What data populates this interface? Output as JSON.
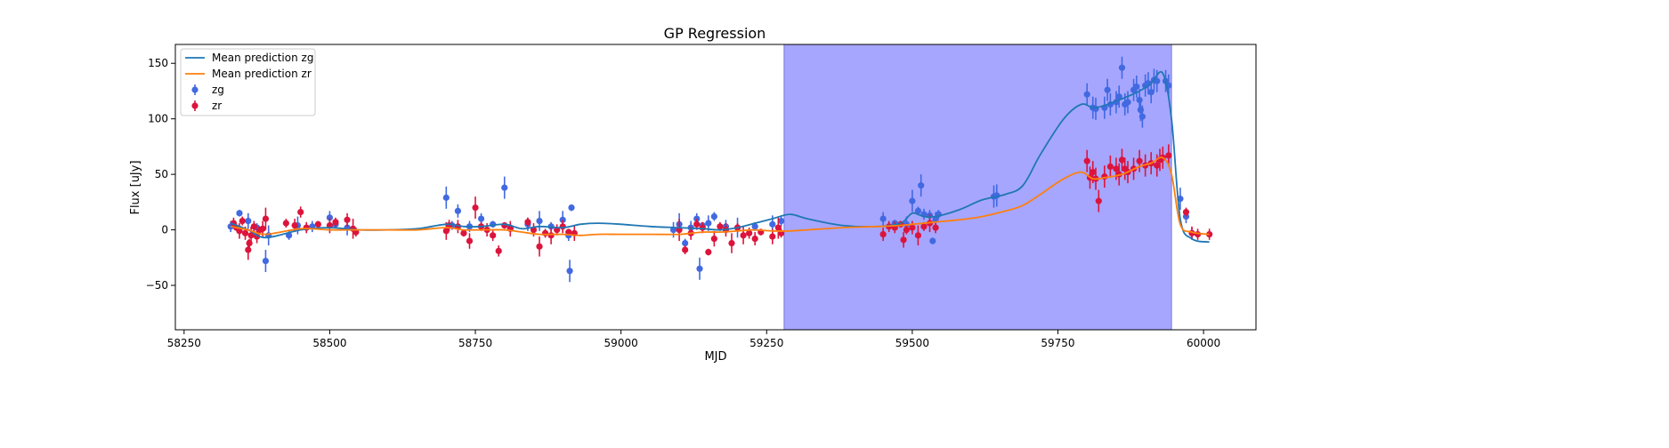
{
  "chart_data": {
    "type": "scatter",
    "title": "GP Regression",
    "xlabel": "MJD",
    "ylabel": "Flux [uJy]",
    "xlim": [
      58235,
      60090
    ],
    "ylim": [
      -90,
      167
    ],
    "x_ticks": [
      58250,
      58500,
      58750,
      59000,
      59250,
      59500,
      59750,
      60000
    ],
    "x_tick_labels": [
      "58250",
      "58500",
      "58750",
      "59000",
      "59250",
      "59500",
      "59750",
      "60000"
    ],
    "y_ticks": [
      -50,
      0,
      50,
      100,
      150
    ],
    "y_tick_labels": [
      "−50",
      "0",
      "50",
      "100",
      "150"
    ],
    "grid": false,
    "legend_position": "upper-left",
    "legend": [
      "Mean prediction zg",
      "Mean prediction zr",
      "zg",
      "zr"
    ],
    "colors": {
      "zg_line": "#1f77b4",
      "zr_line": "#ff7f0e",
      "zg_points": "#4169e1",
      "zr_points": "#dc143c",
      "shaded_region": "#a6a6ff"
    },
    "shaded_region": {
      "x_start": 59280,
      "x_end": 59945
    },
    "lines": [
      {
        "name": "Mean prediction zg",
        "color": "#1f77b4",
        "x": [
          58330,
          58360,
          58390,
          58450,
          58500,
          58550,
          58600,
          58650,
          58700,
          58730,
          58760,
          58800,
          58830,
          58860,
          58900,
          58930,
          58960,
          59000,
          59050,
          59100,
          59140,
          59170,
          59200,
          59230,
          59260,
          59290,
          59320,
          59380,
          59440,
          59480,
          59500,
          59520,
          59540,
          59580,
          59620,
          59660,
          59690,
          59720,
          59760,
          59790,
          59810,
          59830,
          59860,
          59890,
          59910,
          59930,
          59945,
          59960,
          59980,
          60010
        ],
        "y": [
          6,
          0,
          -7,
          0,
          2,
          0,
          0,
          1,
          5,
          3,
          3,
          5,
          1,
          3,
          2,
          5,
          6,
          5,
          3,
          2,
          1,
          0,
          2,
          6,
          10,
          14,
          10,
          4,
          3,
          6,
          15,
          12,
          12,
          18,
          27,
          32,
          40,
          68,
          100,
          113,
          110,
          112,
          118,
          125,
          132,
          141,
          100,
          10,
          -8,
          -11
        ]
      },
      {
        "name": "Mean prediction zr",
        "color": "#ff7f0e",
        "x": [
          58330,
          58360,
          58390,
          58450,
          58500,
          58550,
          58600,
          58650,
          58700,
          58730,
          58760,
          58800,
          58830,
          58860,
          58900,
          58930,
          58960,
          59000,
          59050,
          59100,
          59140,
          59170,
          59200,
          59230,
          59260,
          59290,
          59320,
          59380,
          59440,
          59480,
          59500,
          59520,
          59540,
          59580,
          59620,
          59660,
          59690,
          59720,
          59760,
          59790,
          59810,
          59830,
          59860,
          59890,
          59910,
          59930,
          59945,
          59960,
          59980,
          60010
        ],
        "y": [
          3,
          0,
          -4,
          1,
          0,
          0,
          0,
          0,
          2,
          0,
          0,
          0,
          -2,
          -4,
          -4,
          -5,
          -4,
          -4,
          -4,
          -4,
          -2,
          -2,
          -1,
          0,
          -1,
          -1,
          0,
          2,
          3,
          4,
          5,
          6,
          7,
          9,
          12,
          17,
          22,
          32,
          46,
          52,
          46,
          47,
          50,
          57,
          60,
          65,
          50,
          5,
          -2,
          -4
        ]
      },
      {
        "name": "",
        "color": "#1f77b4",
        "x": [],
        "y": []
      }
    ],
    "series": [
      {
        "name": "zg",
        "color": "#4169e1",
        "points": [
          [
            58330,
            3
          ],
          [
            58345,
            15
          ],
          [
            58360,
            8
          ],
          [
            58375,
            2
          ],
          [
            58390,
            -28
          ],
          [
            58395,
            -5
          ],
          [
            58430,
            -5
          ],
          [
            58445,
            4
          ],
          [
            58470,
            3
          ],
          [
            58500,
            11
          ],
          [
            58510,
            5
          ],
          [
            58530,
            2
          ],
          [
            58700,
            29
          ],
          [
            58710,
            4
          ],
          [
            58720,
            17
          ],
          [
            58740,
            3
          ],
          [
            58760,
            10
          ],
          [
            58780,
            5
          ],
          [
            58800,
            38
          ],
          [
            58810,
            2
          ],
          [
            58840,
            5
          ],
          [
            58860,
            8
          ],
          [
            58880,
            3
          ],
          [
            58900,
            9
          ],
          [
            58910,
            -5
          ],
          [
            58912,
            -37
          ],
          [
            58915,
            20
          ],
          [
            59090,
            0
          ],
          [
            59100,
            5
          ],
          [
            59110,
            -12
          ],
          [
            59120,
            2
          ],
          [
            59130,
            10
          ],
          [
            59135,
            -35
          ],
          [
            59140,
            4
          ],
          [
            59150,
            6
          ],
          [
            59160,
            12
          ],
          [
            59180,
            3
          ],
          [
            59200,
            2
          ],
          [
            59230,
            3
          ],
          [
            59260,
            5
          ],
          [
            59275,
            8
          ],
          [
            59450,
            10
          ],
          [
            59470,
            6
          ],
          [
            59490,
            5
          ],
          [
            59500,
            26
          ],
          [
            59510,
            17
          ],
          [
            59515,
            40
          ],
          [
            59520,
            14
          ],
          [
            59530,
            13
          ],
          [
            59535,
            -10
          ],
          [
            59540,
            9
          ],
          [
            59545,
            14
          ],
          [
            59640,
            30
          ],
          [
            59645,
            31
          ],
          [
            59800,
            122
          ],
          [
            59810,
            110
          ],
          [
            59815,
            109
          ],
          [
            59830,
            110
          ],
          [
            59835,
            126
          ],
          [
            59840,
            113
          ],
          [
            59850,
            115
          ],
          [
            59855,
            120
          ],
          [
            59860,
            146
          ],
          [
            59865,
            113
          ],
          [
            59870,
            115
          ],
          [
            59880,
            126
          ],
          [
            59885,
            129
          ],
          [
            59890,
            117
          ],
          [
            59892,
            108
          ],
          [
            59895,
            102
          ],
          [
            59900,
            130
          ],
          [
            59905,
            132
          ],
          [
            59910,
            124
          ],
          [
            59915,
            135
          ],
          [
            59920,
            134
          ],
          [
            59935,
            134
          ],
          [
            59940,
            130
          ],
          [
            59960,
            28
          ],
          [
            59970,
            12
          ],
          [
            59980,
            -3
          ]
        ]
      },
      {
        "name": "zr",
        "color": "#dc143c",
        "points": [
          [
            58335,
            6
          ],
          [
            58340,
            2
          ],
          [
            58345,
            -1
          ],
          [
            58350,
            8
          ],
          [
            58355,
            -3
          ],
          [
            58360,
            -18
          ],
          [
            58362,
            -12
          ],
          [
            58365,
            -5
          ],
          [
            58370,
            3
          ],
          [
            58375,
            -6
          ],
          [
            58380,
            0
          ],
          [
            58385,
            1
          ],
          [
            58390,
            10
          ],
          [
            58425,
            6
          ],
          [
            58440,
            4
          ],
          [
            58450,
            16
          ],
          [
            58460,
            2
          ],
          [
            58480,
            5
          ],
          [
            58500,
            4
          ],
          [
            58510,
            7
          ],
          [
            58530,
            9
          ],
          [
            58540,
            1
          ],
          [
            58545,
            -2
          ],
          [
            58700,
            -1
          ],
          [
            58705,
            4
          ],
          [
            58720,
            3
          ],
          [
            58730,
            -3
          ],
          [
            58740,
            -10
          ],
          [
            58750,
            20
          ],
          [
            58760,
            3
          ],
          [
            58770,
            0
          ],
          [
            58780,
            -5
          ],
          [
            58790,
            -19
          ],
          [
            58800,
            4
          ],
          [
            58810,
            1
          ],
          [
            58840,
            7
          ],
          [
            58850,
            0
          ],
          [
            58860,
            -15
          ],
          [
            58870,
            -3
          ],
          [
            58880,
            -5
          ],
          [
            58890,
            0
          ],
          [
            58900,
            3
          ],
          [
            58910,
            -2
          ],
          [
            58920,
            -3
          ],
          [
            59100,
            0
          ],
          [
            59110,
            -18
          ],
          [
            59120,
            -3
          ],
          [
            59130,
            5
          ],
          [
            59140,
            2
          ],
          [
            59150,
            -20
          ],
          [
            59160,
            -8
          ],
          [
            59170,
            3
          ],
          [
            59180,
            0
          ],
          [
            59190,
            -12
          ],
          [
            59200,
            2
          ],
          [
            59210,
            -5
          ],
          [
            59220,
            -3
          ],
          [
            59230,
            -8
          ],
          [
            59240,
            -2
          ],
          [
            59260,
            -6
          ],
          [
            59270,
            2
          ],
          [
            59275,
            -3
          ],
          [
            59450,
            -4
          ],
          [
            59460,
            3
          ],
          [
            59470,
            2
          ],
          [
            59480,
            5
          ],
          [
            59485,
            -9
          ],
          [
            59490,
            0
          ],
          [
            59500,
            2
          ],
          [
            59510,
            -5
          ],
          [
            59520,
            3
          ],
          [
            59530,
            6
          ],
          [
            59540,
            2
          ],
          [
            59800,
            62
          ],
          [
            59805,
            47
          ],
          [
            59810,
            52
          ],
          [
            59815,
            46
          ],
          [
            59820,
            26
          ],
          [
            59830,
            48
          ],
          [
            59840,
            57
          ],
          [
            59850,
            55
          ],
          [
            59855,
            50
          ],
          [
            59860,
            63
          ],
          [
            59865,
            55
          ],
          [
            59870,
            52
          ],
          [
            59880,
            55
          ],
          [
            59890,
            62
          ],
          [
            59900,
            58
          ],
          [
            59910,
            60
          ],
          [
            59920,
            58
          ],
          [
            59925,
            63
          ],
          [
            59930,
            65
          ],
          [
            59940,
            67
          ],
          [
            59970,
            16
          ],
          [
            59980,
            -3
          ],
          [
            59990,
            -4
          ],
          [
            60010,
            -4
          ]
        ]
      }
    ]
  }
}
